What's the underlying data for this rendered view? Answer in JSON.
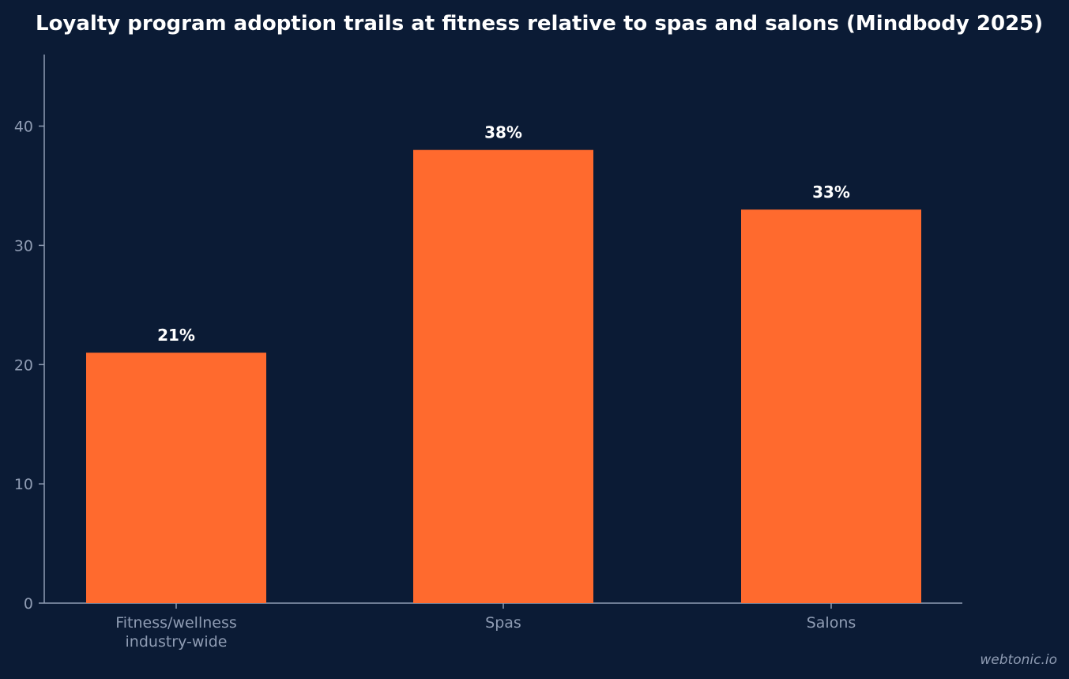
{
  "chart_data": {
    "type": "bar",
    "title": "Loyalty program adoption trails at fitness relative to spas and salons (Mindbody 2025)",
    "categories": [
      [
        "Fitness/wellness",
        "industry-wide"
      ],
      [
        "Spas"
      ],
      [
        "Salons"
      ]
    ],
    "values": [
      21,
      38,
      33
    ],
    "data_labels": [
      "21%",
      "38%",
      "33%"
    ],
    "ylim": [
      0,
      46
    ],
    "yticks": [
      0,
      10,
      20,
      30,
      40
    ],
    "xlabel": "",
    "ylabel": "",
    "grid": false,
    "legend": "none",
    "bar_color": "#ff6a2e",
    "background_color": "#0b1b35"
  },
  "watermark": "webtonic.io"
}
